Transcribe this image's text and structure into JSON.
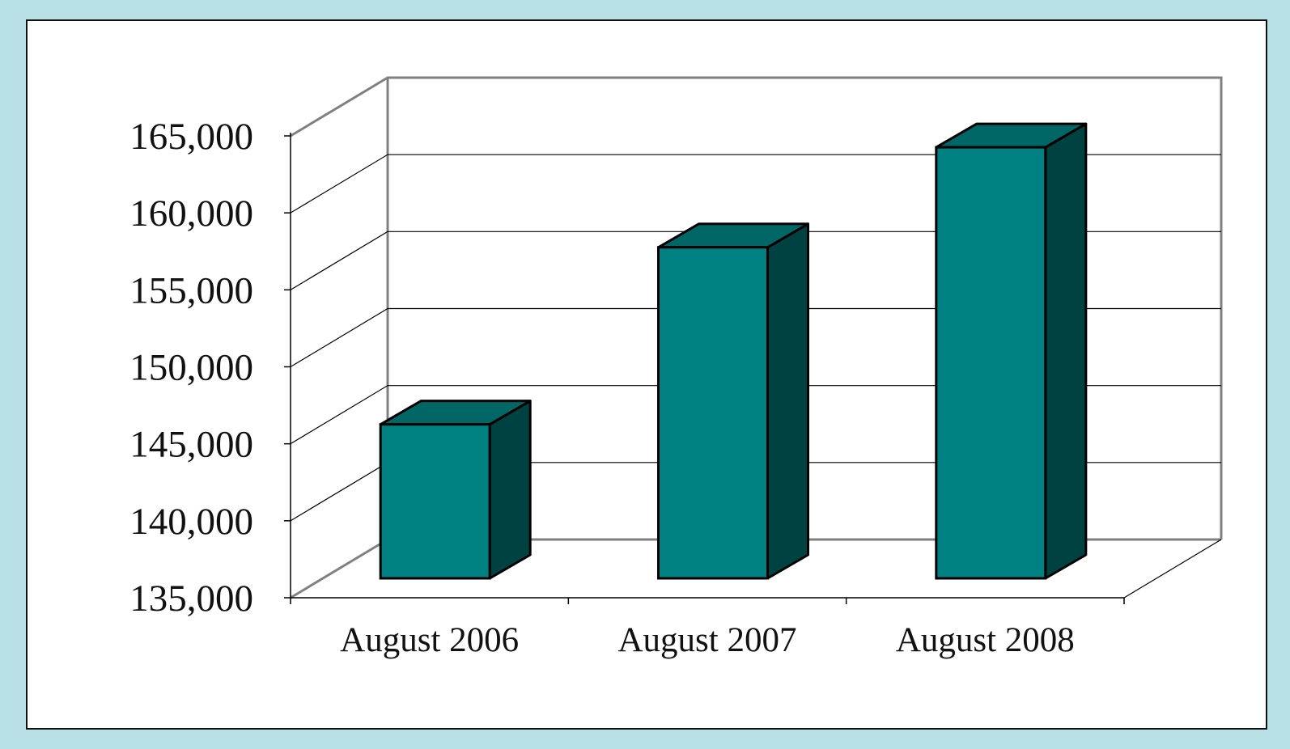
{
  "chart_data": {
    "type": "bar",
    "three_d": true,
    "categories": [
      "August 2006",
      "August 2007",
      "August 2008"
    ],
    "values": [
      145000,
      156500,
      163000
    ],
    "ylim": [
      135000,
      165000
    ],
    "yticks": [
      135000,
      140000,
      145000,
      150000,
      155000,
      160000,
      165000
    ],
    "ytick_labels": [
      "135,000",
      "140,000",
      "145,000",
      "150,000",
      "155,000",
      "160,000",
      "165,000"
    ],
    "grid": true,
    "legend": "none",
    "colors": {
      "bar_front": "#008080",
      "bar_top": "#006666",
      "bar_side": "#004242",
      "outline": "#000000",
      "wall_edge": "#808080",
      "background": "#b9e0e4"
    }
  }
}
